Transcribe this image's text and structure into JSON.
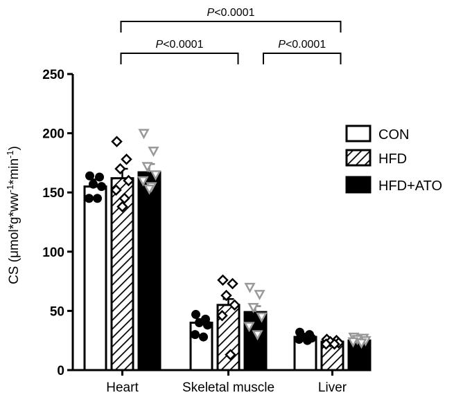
{
  "chart_data": {
    "type": "bar",
    "ylabel": "CS (μmol*g*ww-1*min-1)",
    "ylabel_parts": {
      "main": "CS (μmol*g*ww",
      "sup1": "-1",
      "mid": "*min",
      "sup2": "-1",
      "end": ")"
    },
    "ylim": [
      0,
      250
    ],
    "yticks": [
      0,
      50,
      100,
      150,
      200,
      250
    ],
    "categories": [
      "Heart",
      "Skeletal muscle",
      "Liver"
    ],
    "legend_position": "right",
    "series": [
      {
        "name": "CON",
        "style": "open",
        "values": [
          155,
          40,
          28
        ],
        "errors": [
          6,
          3,
          1.5
        ],
        "points": [
          [
            164,
            163,
            157,
            155,
            145,
            145
          ],
          [
            47,
            43,
            40,
            38,
            30,
            28
          ],
          [
            32,
            30,
            28,
            27,
            26,
            25
          ]
        ]
      },
      {
        "name": "HFD",
        "style": "hatched",
        "values": [
          162,
          55,
          24
        ],
        "errors": [
          8,
          5,
          1
        ],
        "points": [
          [
            193,
            178,
            170,
            160,
            152,
            145,
            138
          ],
          [
            76,
            73,
            63,
            55,
            46,
            13
          ],
          [
            26,
            25,
            24,
            23,
            22,
            22
          ]
        ]
      },
      {
        "name": "HFD+ATO",
        "style": "filled",
        "values": [
          167,
          49,
          25
        ],
        "errors": [
          7,
          5,
          1
        ],
        "points": [
          [
            200,
            185,
            172,
            165,
            160,
            155,
            153
          ],
          [
            70,
            64,
            53,
            45,
            37,
            30
          ],
          [
            28,
            27,
            26,
            25,
            24,
            23
          ]
        ]
      }
    ],
    "annotations": [
      {
        "label": "P<0.0001",
        "from": "Heart",
        "to": "Liver"
      },
      {
        "label": "P<0.0001",
        "from": "Heart",
        "to": "Skeletal muscle"
      },
      {
        "label": "P<0.0001",
        "from": "Skeletal muscle",
        "to": "Liver"
      }
    ]
  }
}
